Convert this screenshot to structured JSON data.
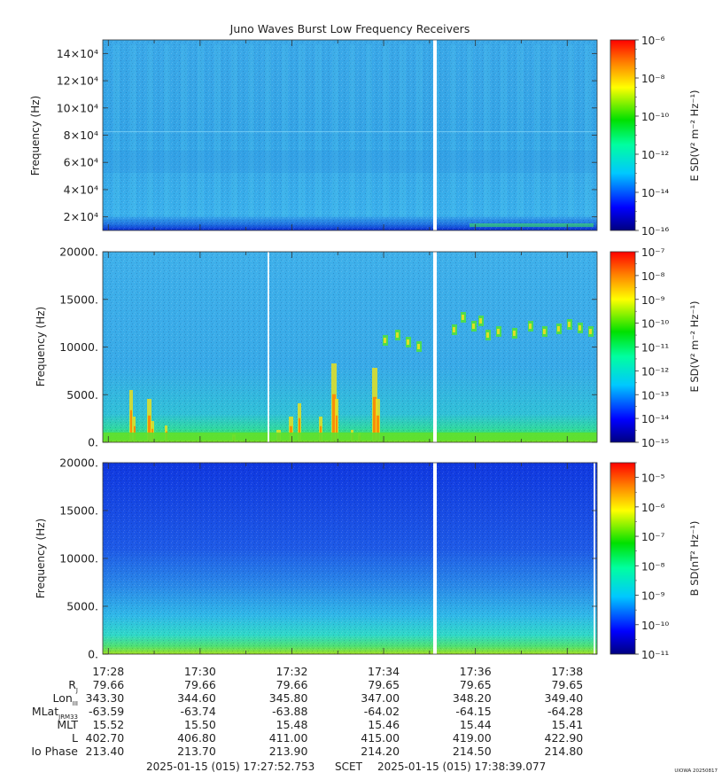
{
  "chart_data": {
    "type": "heatmap",
    "title": "Juno Waves Burst Low Frequency Receivers",
    "x_time_labels": [
      "17:28",
      "17:30",
      "17:32",
      "17:34",
      "17:36",
      "17:38"
    ],
    "panels": [
      {
        "ylabel": "Frequency (Hz)",
        "y_ticks": [
          "2×10⁴",
          "4×10⁴",
          "6×10⁴",
          "8×10⁴",
          "10×10⁴",
          "12×10⁴",
          "14×10⁴"
        ],
        "y_values": [
          20000,
          40000,
          60000,
          80000,
          100000,
          120000,
          140000
        ],
        "ylim": [
          10000,
          150000
        ],
        "colorbar_label": "E SD(V² m⁻² Hz⁻¹)",
        "colorbar_ticks": [
          "10⁻⁶",
          "10⁻⁸",
          "10⁻¹⁰",
          "10⁻¹²",
          "10⁻¹⁴",
          "10⁻¹⁶"
        ],
        "colorscale_log_range": [
          -16,
          -6
        ],
        "data_gap_time": "17:35:08"
      },
      {
        "ylabel": "Frequency (Hz)",
        "y_ticks": [
          "0.",
          "5000.",
          "10000.",
          "15000.",
          "20000."
        ],
        "y_values": [
          0,
          5000,
          10000,
          15000,
          20000
        ],
        "ylim": [
          0,
          20000
        ],
        "colorbar_label": "E SD(V² m⁻² Hz⁻¹)",
        "colorbar_ticks": [
          "10⁻⁷",
          "10⁻⁸",
          "10⁻⁹",
          "10⁻¹⁰",
          "10⁻¹¹",
          "10⁻¹²",
          "10⁻¹³",
          "10⁻¹⁴",
          "10⁻¹⁵"
        ],
        "colorscale_log_range": [
          -15,
          -7
        ],
        "data_gap_time": "17:35:08"
      },
      {
        "ylabel": "Frequency (Hz)",
        "y_ticks": [
          "0.",
          "5000.",
          "10000.",
          "15000.",
          "20000."
        ],
        "y_values": [
          0,
          5000,
          10000,
          15000,
          20000
        ],
        "ylim": [
          0,
          20000
        ],
        "colorbar_label": "B SD(nT² Hz⁻¹)",
        "colorbar_ticks": [
          "10⁻⁵",
          "10⁻⁶",
          "10⁻⁷",
          "10⁻⁸",
          "10⁻⁹",
          "10⁻¹⁰",
          "10⁻¹¹"
        ],
        "colorscale_log_range": [
          -11,
          -4.5
        ],
        "data_gap_time": "17:35:08"
      }
    ],
    "ephemeris": {
      "rows": [
        {
          "label_main": "R",
          "label_sub": "J",
          "values": [
            "79.66",
            "79.66",
            "79.66",
            "79.65",
            "79.65",
            "79.65"
          ]
        },
        {
          "label_main": "Lon",
          "label_sub": "III",
          "values": [
            "343.30",
            "344.60",
            "345.80",
            "347.00",
            "348.20",
            "349.40"
          ]
        },
        {
          "label_main": "MLat",
          "label_sub": "JRM33",
          "values": [
            "-63.59",
            "-63.74",
            "-63.88",
            "-64.02",
            "-64.15",
            "-64.28"
          ]
        },
        {
          "label_main": "MLT",
          "label_sub": "",
          "values": [
            "15.52",
            "15.50",
            "15.48",
            "15.46",
            "15.44",
            "15.41"
          ]
        },
        {
          "label_main": "L",
          "label_sub": "",
          "values": [
            "402.70",
            "406.80",
            "411.00",
            "415.00",
            "419.00",
            "422.90"
          ]
        },
        {
          "label_main": "Io Phase",
          "label_sub": "",
          "values": [
            "213.40",
            "213.70",
            "213.90",
            "214.20",
            "214.50",
            "214.80"
          ]
        }
      ]
    },
    "time_range": {
      "start": "2025-01-15 (015) 17:27:52.753",
      "scet": "SCET",
      "end": "2025-01-15 (015) 17:38:39.077"
    },
    "stamp": "UIOWA 20250817"
  }
}
